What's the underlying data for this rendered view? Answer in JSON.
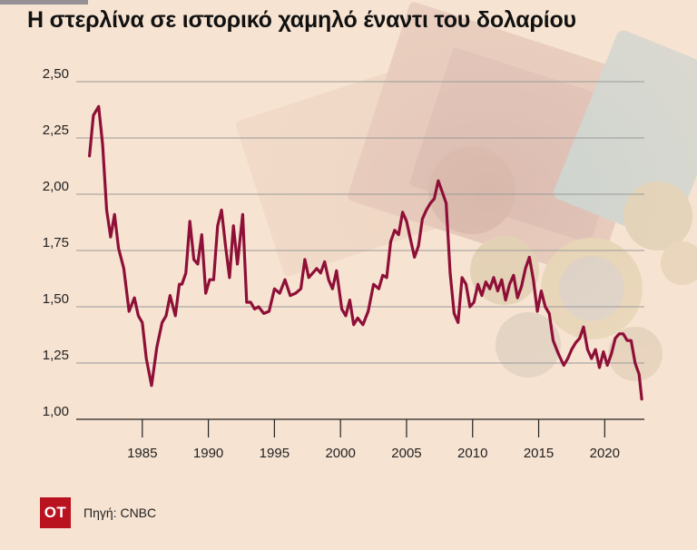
{
  "page": {
    "title": "Η στερλίνα σε ιστορικό χαμηλό έναντι του δολαρίου",
    "logo_text": "ΟΤ",
    "source": "Πηγή: CNBC",
    "colors": {
      "background": "#f7e3d1",
      "series": "#8e0f37",
      "logo": "#b9131f",
      "accent_bar": "#1c2a4f"
    }
  },
  "chart_data": {
    "type": "line",
    "title": "Η στερλίνα σε ιστορικό χαμηλό έναντι του δολαρίου",
    "xlabel": "",
    "ylabel": "",
    "xlim": [
      1980,
      2023
    ],
    "ylim": [
      1.0,
      2.5
    ],
    "grid": true,
    "legend": "none",
    "yticks": [
      1.0,
      1.25,
      1.5,
      1.75,
      2.0,
      2.25,
      2.5
    ],
    "ytick_labels": [
      "1,00",
      "1,25",
      "1,50",
      "1,75",
      "2,00",
      "2,25",
      "2,50"
    ],
    "xticks": [
      1985,
      1990,
      1995,
      2000,
      2005,
      2010,
      2015,
      2020
    ],
    "xtick_labels": [
      "1985",
      "1990",
      "1995",
      "2000",
      "2005",
      "2010",
      "2015",
      "2020"
    ],
    "series": [
      {
        "x": [
          1981.0,
          1981.3,
          1981.7,
          1982.0,
          1982.3,
          1982.6,
          1982.9,
          1983.2,
          1983.6,
          1984.0,
          1984.4,
          1984.7,
          1985.0,
          1985.3,
          1985.7,
          1986.1,
          1986.5,
          1986.8,
          1987.1,
          1987.5,
          1987.8,
          1988.0,
          1988.3,
          1988.6,
          1988.9,
          1989.2,
          1989.5,
          1989.8,
          1990.1,
          1990.4,
          1990.7,
          1991.0,
          1991.3,
          1991.6,
          1991.9,
          1992.2,
          1992.6,
          1992.9,
          1993.2,
          1993.5,
          1993.8,
          1994.2,
          1994.6,
          1995.0,
          1995.4,
          1995.8,
          1996.2,
          1996.6,
          1997.0,
          1997.3,
          1997.6,
          1997.9,
          1998.2,
          1998.5,
          1998.8,
          1999.1,
          1999.4,
          1999.7,
          2000.1,
          2000.4,
          2000.7,
          2001.0,
          2001.3,
          2001.7,
          2002.1,
          2002.5,
          2002.9,
          2003.2,
          2003.5,
          2003.8,
          2004.1,
          2004.4,
          2004.7,
          2005.0,
          2005.3,
          2005.6,
          2005.9,
          2006.2,
          2006.5,
          2006.8,
          2007.1,
          2007.4,
          2007.7,
          2008.0,
          2008.3,
          2008.6,
          2008.9,
          2009.2,
          2009.5,
          2009.8,
          2010.1,
          2010.4,
          2010.7,
          2011.0,
          2011.3,
          2011.6,
          2011.9,
          2012.2,
          2012.5,
          2012.8,
          2013.1,
          2013.4,
          2013.7,
          2014.0,
          2014.3,
          2014.6,
          2014.9,
          2015.2,
          2015.5,
          2015.8,
          2016.1,
          2016.5,
          2016.9,
          2017.2,
          2017.5,
          2017.8,
          2018.1,
          2018.4,
          2018.7,
          2019.0,
          2019.3,
          2019.6,
          2019.9,
          2020.2,
          2020.5,
          2020.8,
          2021.1,
          2021.4,
          2021.7,
          2022.0,
          2022.3,
          2022.6,
          2022.8
        ],
        "values": [
          2.17,
          2.35,
          2.39,
          2.22,
          1.93,
          1.81,
          1.91,
          1.76,
          1.67,
          1.48,
          1.54,
          1.46,
          1.43,
          1.27,
          1.15,
          1.32,
          1.43,
          1.46,
          1.55,
          1.46,
          1.6,
          1.6,
          1.65,
          1.88,
          1.71,
          1.69,
          1.82,
          1.56,
          1.62,
          1.62,
          1.86,
          1.93,
          1.77,
          1.63,
          1.86,
          1.69,
          1.91,
          1.52,
          1.52,
          1.49,
          1.5,
          1.47,
          1.48,
          1.58,
          1.56,
          1.62,
          1.55,
          1.56,
          1.58,
          1.71,
          1.63,
          1.65,
          1.67,
          1.65,
          1.7,
          1.62,
          1.58,
          1.66,
          1.49,
          1.46,
          1.53,
          1.42,
          1.45,
          1.42,
          1.48,
          1.6,
          1.58,
          1.64,
          1.63,
          1.79,
          1.84,
          1.82,
          1.92,
          1.88,
          1.8,
          1.72,
          1.77,
          1.89,
          1.93,
          1.96,
          1.98,
          2.06,
          2.01,
          1.96,
          1.65,
          1.47,
          1.43,
          1.63,
          1.6,
          1.5,
          1.52,
          1.6,
          1.55,
          1.61,
          1.58,
          1.63,
          1.57,
          1.62,
          1.53,
          1.6,
          1.64,
          1.54,
          1.59,
          1.67,
          1.72,
          1.62,
          1.48,
          1.57,
          1.5,
          1.47,
          1.35,
          1.29,
          1.24,
          1.27,
          1.31,
          1.34,
          1.36,
          1.41,
          1.31,
          1.27,
          1.31,
          1.23,
          1.3,
          1.24,
          1.29,
          1.36,
          1.38,
          1.38,
          1.35,
          1.35,
          1.25,
          1.2,
          1.09
        ]
      }
    ]
  }
}
